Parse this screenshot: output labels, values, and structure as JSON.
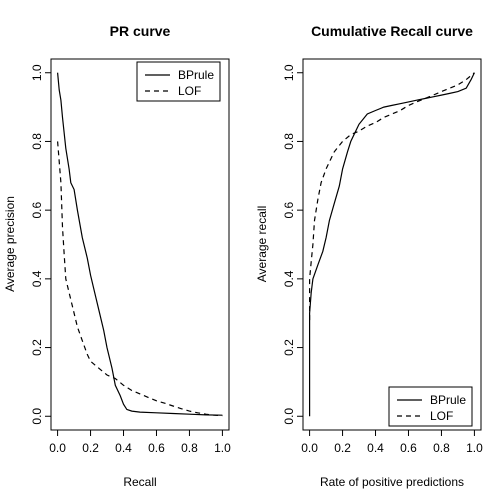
{
  "chart_data": [
    {
      "type": "line",
      "title": "PR curve",
      "xlabel": "Recall",
      "ylabel": "Average precision",
      "xlim": [
        0,
        1
      ],
      "ylim": [
        0,
        1
      ],
      "xticks": [
        "0.0",
        "0.2",
        "0.4",
        "0.6",
        "0.8",
        "1.0"
      ],
      "yticks": [
        "0.0",
        "0.2",
        "0.4",
        "0.6",
        "0.8",
        "1.0"
      ],
      "legend_position": "top-right",
      "series": [
        {
          "name": "BPrule",
          "line_style": "solid",
          "x": [
            0.0,
            0.01,
            0.02,
            0.03,
            0.05,
            0.07,
            0.08,
            0.1,
            0.12,
            0.15,
            0.18,
            0.2,
            0.23,
            0.25,
            0.28,
            0.3,
            0.33,
            0.35,
            0.38,
            0.4,
            0.42,
            0.45,
            0.5,
            0.6,
            0.7,
            0.8,
            0.9,
            1.0
          ],
          "y": [
            1.0,
            0.95,
            0.92,
            0.87,
            0.78,
            0.72,
            0.68,
            0.66,
            0.6,
            0.52,
            0.46,
            0.41,
            0.35,
            0.31,
            0.25,
            0.2,
            0.14,
            0.09,
            0.06,
            0.035,
            0.02,
            0.015,
            0.012,
            0.01,
            0.008,
            0.006,
            0.004,
            0.003
          ]
        },
        {
          "name": "LOF",
          "line_style": "dashed",
          "x": [
            0.0,
            0.02,
            0.03,
            0.04,
            0.05,
            0.07,
            0.1,
            0.12,
            0.15,
            0.18,
            0.2,
            0.25,
            0.3,
            0.35,
            0.4,
            0.45,
            0.5,
            0.55,
            0.6,
            0.65,
            0.7,
            0.75,
            0.8,
            0.85,
            0.9,
            0.95,
            1.0
          ],
          "y": [
            0.8,
            0.68,
            0.55,
            0.47,
            0.4,
            0.36,
            0.3,
            0.26,
            0.22,
            0.18,
            0.16,
            0.14,
            0.12,
            0.11,
            0.09,
            0.075,
            0.065,
            0.055,
            0.045,
            0.038,
            0.03,
            0.022,
            0.015,
            0.01,
            0.006,
            0.003,
            0.002
          ]
        }
      ]
    },
    {
      "type": "line",
      "title": "Cumulative Recall curve",
      "xlabel": "Rate of positive predictions",
      "ylabel": "Average recall",
      "xlim": [
        0,
        1
      ],
      "ylim": [
        0,
        1
      ],
      "xticks": [
        "0.0",
        "0.2",
        "0.4",
        "0.6",
        "0.8",
        "1.0"
      ],
      "yticks": [
        "0.0",
        "0.2",
        "0.4",
        "0.6",
        "0.8",
        "1.0"
      ],
      "legend_position": "bottom-right",
      "series": [
        {
          "name": "BPrule",
          "line_style": "solid",
          "x": [
            0.0,
            0.0,
            0.005,
            0.01,
            0.02,
            0.05,
            0.08,
            0.1,
            0.12,
            0.15,
            0.18,
            0.2,
            0.23,
            0.25,
            0.28,
            0.3,
            0.35,
            0.4,
            0.45,
            0.5,
            0.55,
            0.6,
            0.65,
            0.7,
            0.75,
            0.8,
            0.85,
            0.9,
            0.95,
            0.98,
            1.0
          ],
          "y": [
            0.0,
            0.3,
            0.33,
            0.36,
            0.4,
            0.44,
            0.48,
            0.52,
            0.57,
            0.62,
            0.67,
            0.72,
            0.77,
            0.8,
            0.83,
            0.85,
            0.88,
            0.89,
            0.9,
            0.905,
            0.91,
            0.915,
            0.92,
            0.925,
            0.93,
            0.935,
            0.94,
            0.945,
            0.955,
            0.98,
            1.0
          ]
        },
        {
          "name": "LOF",
          "line_style": "dashed",
          "x": [
            0.0,
            0.0,
            0.01,
            0.02,
            0.03,
            0.05,
            0.07,
            0.1,
            0.13,
            0.15,
            0.2,
            0.25,
            0.3,
            0.35,
            0.4,
            0.45,
            0.5,
            0.55,
            0.6,
            0.65,
            0.7,
            0.75,
            0.8,
            0.85,
            0.9,
            0.95,
            1.0
          ],
          "y": [
            0.28,
            0.4,
            0.45,
            0.5,
            0.57,
            0.63,
            0.68,
            0.72,
            0.75,
            0.77,
            0.8,
            0.82,
            0.83,
            0.845,
            0.855,
            0.87,
            0.88,
            0.89,
            0.905,
            0.915,
            0.925,
            0.935,
            0.945,
            0.955,
            0.965,
            0.98,
            1.0
          ]
        }
      ]
    }
  ]
}
